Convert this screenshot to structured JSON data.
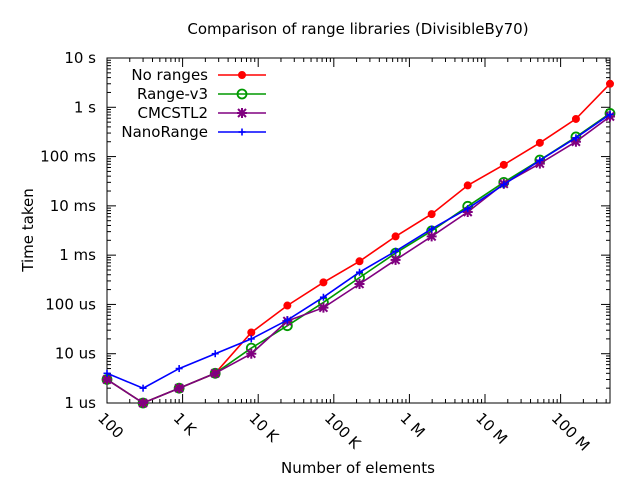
{
  "chart_data": {
    "type": "line",
    "title": "Comparison of range libraries (DivisibleBy70)",
    "xlabel": "Number of elements",
    "ylabel": "Time taken",
    "xscale": "log",
    "yscale": "log",
    "xlim": [
      100,
      450000000
    ],
    "ylim": [
      1e-06,
      10
    ],
    "legend_position": "top-left",
    "grid": false,
    "x": [
      100,
      300,
      900,
      2700,
      8100,
      24300,
      72900,
      218700,
      656100,
      1968300,
      5904900,
      17714700,
      53144100,
      159432300,
      450000000
    ],
    "x_ticks": [
      {
        "value": 100,
        "label": "100"
      },
      {
        "value": 1000,
        "label": "1 K"
      },
      {
        "value": 10000,
        "label": "10 K"
      },
      {
        "value": 100000,
        "label": "100 K"
      },
      {
        "value": 1000000,
        "label": "1 M"
      },
      {
        "value": 10000000,
        "label": "10 M"
      },
      {
        "value": 100000000,
        "label": "100 M"
      }
    ],
    "y_ticks": [
      {
        "value": 1e-06,
        "label": "1 us"
      },
      {
        "value": 1e-05,
        "label": "10 us"
      },
      {
        "value": 0.0001,
        "label": "100 us"
      },
      {
        "value": 0.001,
        "label": "1 ms"
      },
      {
        "value": 0.01,
        "label": "10 ms"
      },
      {
        "value": 0.1,
        "label": "100 ms"
      },
      {
        "value": 1,
        "label": "1  s"
      },
      {
        "value": 10,
        "label": "10  s"
      }
    ],
    "series": [
      {
        "name": "No ranges",
        "color": "#ff0000",
        "marker": "filled-circle",
        "values": [
          3e-06,
          1e-06,
          2e-06,
          4e-06,
          2.7e-05,
          9.5e-05,
          0.00028,
          0.00075,
          0.0024,
          0.0068,
          0.026,
          0.068,
          0.19,
          0.58,
          3.0
        ]
      },
      {
        "name": "Range-v3",
        "color": "#009900",
        "marker": "open-circle",
        "values": [
          3e-06,
          1e-06,
          2e-06,
          4e-06,
          1.3e-05,
          3.7e-05,
          0.00011,
          0.00035,
          0.0011,
          0.0031,
          0.0098,
          0.03,
          0.085,
          0.25,
          0.75
        ]
      },
      {
        "name": "CMCSTL2",
        "color": "#800080",
        "marker": "star",
        "values": [
          3e-06,
          1e-06,
          2e-06,
          4e-06,
          1e-05,
          4.6e-05,
          8.6e-05,
          0.00026,
          0.0008,
          0.0024,
          0.0075,
          0.028,
          0.072,
          0.2,
          0.65
        ]
      },
      {
        "name": "NanoRange",
        "color": "#0000ff",
        "marker": "plus",
        "values": [
          4e-06,
          2e-06,
          5e-06,
          1e-05,
          2e-05,
          4.8e-05,
          0.00014,
          0.00045,
          0.0012,
          0.0034,
          0.0088,
          0.027,
          0.084,
          0.24,
          0.72
        ]
      }
    ]
  }
}
